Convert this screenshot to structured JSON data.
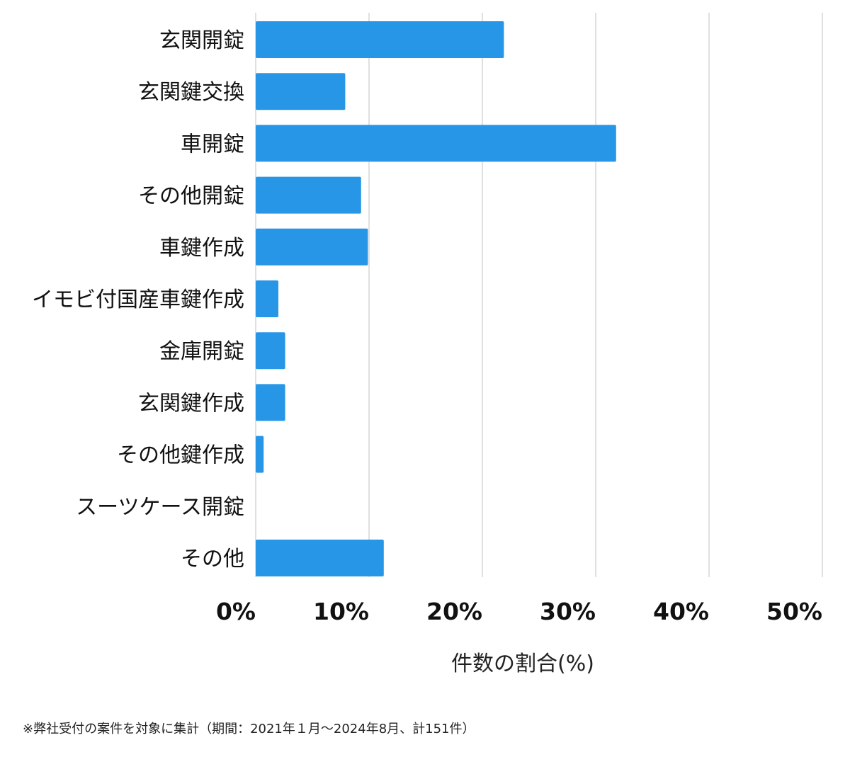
{
  "chart_data": {
    "type": "bar",
    "orientation": "horizontal",
    "categories": [
      "玄関開錠",
      "玄関鍵交換",
      "車開錠",
      "その他開錠",
      "車鍵作成",
      "イモビ付国産車鍵作成",
      "金庫開錠",
      "玄関鍵作成",
      "その他鍵作成",
      "スーツケース開錠",
      "その他"
    ],
    "values": [
      21.9,
      7.9,
      31.8,
      9.3,
      9.9,
      2.0,
      2.6,
      2.6,
      0.7,
      0.0,
      11.3
    ],
    "xlabel": "件数の割合(%)",
    "xlim": [
      0,
      50
    ],
    "xticks": [
      "0%",
      "10%",
      "20%",
      "30%",
      "40%",
      "50%"
    ],
    "xtick_values": [
      0,
      10,
      20,
      30,
      40,
      50
    ],
    "grid": "vertical",
    "bar_color": "#2896E6",
    "grid_color": "#d6d6d6",
    "legend": "none"
  },
  "footnote": "※弊社受付の案件を対象に集計（期間：2021年１月〜2024年8月、計151件）"
}
